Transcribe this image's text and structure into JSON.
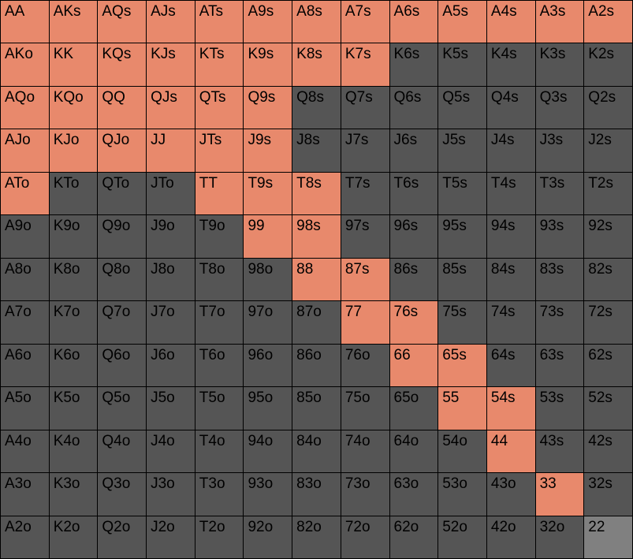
{
  "colors": {
    "raise": "#e8896c",
    "fold": "#555555",
    "partial": "#808080"
  },
  "range_grid": {
    "rows": [
      [
        {
          "hand": "AA",
          "action": "raise"
        },
        {
          "hand": "AKs",
          "action": "raise"
        },
        {
          "hand": "AQs",
          "action": "raise"
        },
        {
          "hand": "AJs",
          "action": "raise"
        },
        {
          "hand": "ATs",
          "action": "raise"
        },
        {
          "hand": "A9s",
          "action": "raise"
        },
        {
          "hand": "A8s",
          "action": "raise"
        },
        {
          "hand": "A7s",
          "action": "raise"
        },
        {
          "hand": "A6s",
          "action": "raise"
        },
        {
          "hand": "A5s",
          "action": "raise"
        },
        {
          "hand": "A4s",
          "action": "raise"
        },
        {
          "hand": "A3s",
          "action": "raise"
        },
        {
          "hand": "A2s",
          "action": "raise"
        }
      ],
      [
        {
          "hand": "AKo",
          "action": "raise"
        },
        {
          "hand": "KK",
          "action": "raise"
        },
        {
          "hand": "KQs",
          "action": "raise"
        },
        {
          "hand": "KJs",
          "action": "raise"
        },
        {
          "hand": "KTs",
          "action": "raise"
        },
        {
          "hand": "K9s",
          "action": "raise"
        },
        {
          "hand": "K8s",
          "action": "raise"
        },
        {
          "hand": "K7s",
          "action": "raise"
        },
        {
          "hand": "K6s",
          "action": "fold"
        },
        {
          "hand": "K5s",
          "action": "fold"
        },
        {
          "hand": "K4s",
          "action": "fold"
        },
        {
          "hand": "K3s",
          "action": "fold"
        },
        {
          "hand": "K2s",
          "action": "fold"
        }
      ],
      [
        {
          "hand": "AQo",
          "action": "raise"
        },
        {
          "hand": "KQo",
          "action": "raise"
        },
        {
          "hand": "QQ",
          "action": "raise"
        },
        {
          "hand": "QJs",
          "action": "raise"
        },
        {
          "hand": "QTs",
          "action": "raise"
        },
        {
          "hand": "Q9s",
          "action": "raise"
        },
        {
          "hand": "Q8s",
          "action": "fold"
        },
        {
          "hand": "Q7s",
          "action": "fold"
        },
        {
          "hand": "Q6s",
          "action": "fold"
        },
        {
          "hand": "Q5s",
          "action": "fold"
        },
        {
          "hand": "Q4s",
          "action": "fold"
        },
        {
          "hand": "Q3s",
          "action": "fold"
        },
        {
          "hand": "Q2s",
          "action": "fold"
        }
      ],
      [
        {
          "hand": "AJo",
          "action": "raise"
        },
        {
          "hand": "KJo",
          "action": "raise"
        },
        {
          "hand": "QJo",
          "action": "raise"
        },
        {
          "hand": "JJ",
          "action": "raise"
        },
        {
          "hand": "JTs",
          "action": "raise"
        },
        {
          "hand": "J9s",
          "action": "raise"
        },
        {
          "hand": "J8s",
          "action": "fold"
        },
        {
          "hand": "J7s",
          "action": "fold"
        },
        {
          "hand": "J6s",
          "action": "fold"
        },
        {
          "hand": "J5s",
          "action": "fold"
        },
        {
          "hand": "J4s",
          "action": "fold"
        },
        {
          "hand": "J3s",
          "action": "fold"
        },
        {
          "hand": "J2s",
          "action": "fold"
        }
      ],
      [
        {
          "hand": "ATo",
          "action": "raise"
        },
        {
          "hand": "KTo",
          "action": "fold"
        },
        {
          "hand": "QTo",
          "action": "fold"
        },
        {
          "hand": "JTo",
          "action": "fold"
        },
        {
          "hand": "TT",
          "action": "raise"
        },
        {
          "hand": "T9s",
          "action": "raise"
        },
        {
          "hand": "T8s",
          "action": "raise"
        },
        {
          "hand": "T7s",
          "action": "fold"
        },
        {
          "hand": "T6s",
          "action": "fold"
        },
        {
          "hand": "T5s",
          "action": "fold"
        },
        {
          "hand": "T4s",
          "action": "fold"
        },
        {
          "hand": "T3s",
          "action": "fold"
        },
        {
          "hand": "T2s",
          "action": "fold"
        }
      ],
      [
        {
          "hand": "A9o",
          "action": "fold"
        },
        {
          "hand": "K9o",
          "action": "fold"
        },
        {
          "hand": "Q9o",
          "action": "fold"
        },
        {
          "hand": "J9o",
          "action": "fold"
        },
        {
          "hand": "T9o",
          "action": "fold"
        },
        {
          "hand": "99",
          "action": "raise"
        },
        {
          "hand": "98s",
          "action": "raise"
        },
        {
          "hand": "97s",
          "action": "fold"
        },
        {
          "hand": "96s",
          "action": "fold"
        },
        {
          "hand": "95s",
          "action": "fold"
        },
        {
          "hand": "94s",
          "action": "fold"
        },
        {
          "hand": "93s",
          "action": "fold"
        },
        {
          "hand": "92s",
          "action": "fold"
        }
      ],
      [
        {
          "hand": "A8o",
          "action": "fold"
        },
        {
          "hand": "K8o",
          "action": "fold"
        },
        {
          "hand": "Q8o",
          "action": "fold"
        },
        {
          "hand": "J8o",
          "action": "fold"
        },
        {
          "hand": "T8o",
          "action": "fold"
        },
        {
          "hand": "98o",
          "action": "fold"
        },
        {
          "hand": "88",
          "action": "raise"
        },
        {
          "hand": "87s",
          "action": "raise"
        },
        {
          "hand": "86s",
          "action": "fold"
        },
        {
          "hand": "85s",
          "action": "fold"
        },
        {
          "hand": "84s",
          "action": "fold"
        },
        {
          "hand": "83s",
          "action": "fold"
        },
        {
          "hand": "82s",
          "action": "fold"
        }
      ],
      [
        {
          "hand": "A7o",
          "action": "fold"
        },
        {
          "hand": "K7o",
          "action": "fold"
        },
        {
          "hand": "Q7o",
          "action": "fold"
        },
        {
          "hand": "J7o",
          "action": "fold"
        },
        {
          "hand": "T7o",
          "action": "fold"
        },
        {
          "hand": "97o",
          "action": "fold"
        },
        {
          "hand": "87o",
          "action": "fold"
        },
        {
          "hand": "77",
          "action": "raise"
        },
        {
          "hand": "76s",
          "action": "raise"
        },
        {
          "hand": "75s",
          "action": "fold"
        },
        {
          "hand": "74s",
          "action": "fold"
        },
        {
          "hand": "73s",
          "action": "fold"
        },
        {
          "hand": "72s",
          "action": "fold"
        }
      ],
      [
        {
          "hand": "A6o",
          "action": "fold"
        },
        {
          "hand": "K6o",
          "action": "fold"
        },
        {
          "hand": "Q6o",
          "action": "fold"
        },
        {
          "hand": "J6o",
          "action": "fold"
        },
        {
          "hand": "T6o",
          "action": "fold"
        },
        {
          "hand": "96o",
          "action": "fold"
        },
        {
          "hand": "86o",
          "action": "fold"
        },
        {
          "hand": "76o",
          "action": "fold"
        },
        {
          "hand": "66",
          "action": "raise"
        },
        {
          "hand": "65s",
          "action": "raise"
        },
        {
          "hand": "64s",
          "action": "fold"
        },
        {
          "hand": "63s",
          "action": "fold"
        },
        {
          "hand": "62s",
          "action": "fold"
        }
      ],
      [
        {
          "hand": "A5o",
          "action": "fold"
        },
        {
          "hand": "K5o",
          "action": "fold"
        },
        {
          "hand": "Q5o",
          "action": "fold"
        },
        {
          "hand": "J5o",
          "action": "fold"
        },
        {
          "hand": "T5o",
          "action": "fold"
        },
        {
          "hand": "95o",
          "action": "fold"
        },
        {
          "hand": "85o",
          "action": "fold"
        },
        {
          "hand": "75o",
          "action": "fold"
        },
        {
          "hand": "65o",
          "action": "fold"
        },
        {
          "hand": "55",
          "action": "raise"
        },
        {
          "hand": "54s",
          "action": "raise"
        },
        {
          "hand": "53s",
          "action": "fold"
        },
        {
          "hand": "52s",
          "action": "fold"
        }
      ],
      [
        {
          "hand": "A4o",
          "action": "fold"
        },
        {
          "hand": "K4o",
          "action": "fold"
        },
        {
          "hand": "Q4o",
          "action": "fold"
        },
        {
          "hand": "J4o",
          "action": "fold"
        },
        {
          "hand": "T4o",
          "action": "fold"
        },
        {
          "hand": "94o",
          "action": "fold"
        },
        {
          "hand": "84o",
          "action": "fold"
        },
        {
          "hand": "74o",
          "action": "fold"
        },
        {
          "hand": "64o",
          "action": "fold"
        },
        {
          "hand": "54o",
          "action": "fold"
        },
        {
          "hand": "44",
          "action": "raise"
        },
        {
          "hand": "43s",
          "action": "fold"
        },
        {
          "hand": "42s",
          "action": "fold"
        }
      ],
      [
        {
          "hand": "A3o",
          "action": "fold"
        },
        {
          "hand": "K3o",
          "action": "fold"
        },
        {
          "hand": "Q3o",
          "action": "fold"
        },
        {
          "hand": "J3o",
          "action": "fold"
        },
        {
          "hand": "T3o",
          "action": "fold"
        },
        {
          "hand": "93o",
          "action": "fold"
        },
        {
          "hand": "83o",
          "action": "fold"
        },
        {
          "hand": "73o",
          "action": "fold"
        },
        {
          "hand": "63o",
          "action": "fold"
        },
        {
          "hand": "53o",
          "action": "fold"
        },
        {
          "hand": "43o",
          "action": "fold"
        },
        {
          "hand": "33",
          "action": "raise"
        },
        {
          "hand": "32s",
          "action": "fold"
        }
      ],
      [
        {
          "hand": "A2o",
          "action": "fold"
        },
        {
          "hand": "K2o",
          "action": "fold"
        },
        {
          "hand": "Q2o",
          "action": "fold"
        },
        {
          "hand": "J2o",
          "action": "fold"
        },
        {
          "hand": "T2o",
          "action": "fold"
        },
        {
          "hand": "92o",
          "action": "fold"
        },
        {
          "hand": "82o",
          "action": "fold"
        },
        {
          "hand": "72o",
          "action": "fold"
        },
        {
          "hand": "62o",
          "action": "fold"
        },
        {
          "hand": "52o",
          "action": "fold"
        },
        {
          "hand": "42o",
          "action": "fold"
        },
        {
          "hand": "32o",
          "action": "fold"
        },
        {
          "hand": "22",
          "action": "partial"
        }
      ]
    ]
  }
}
